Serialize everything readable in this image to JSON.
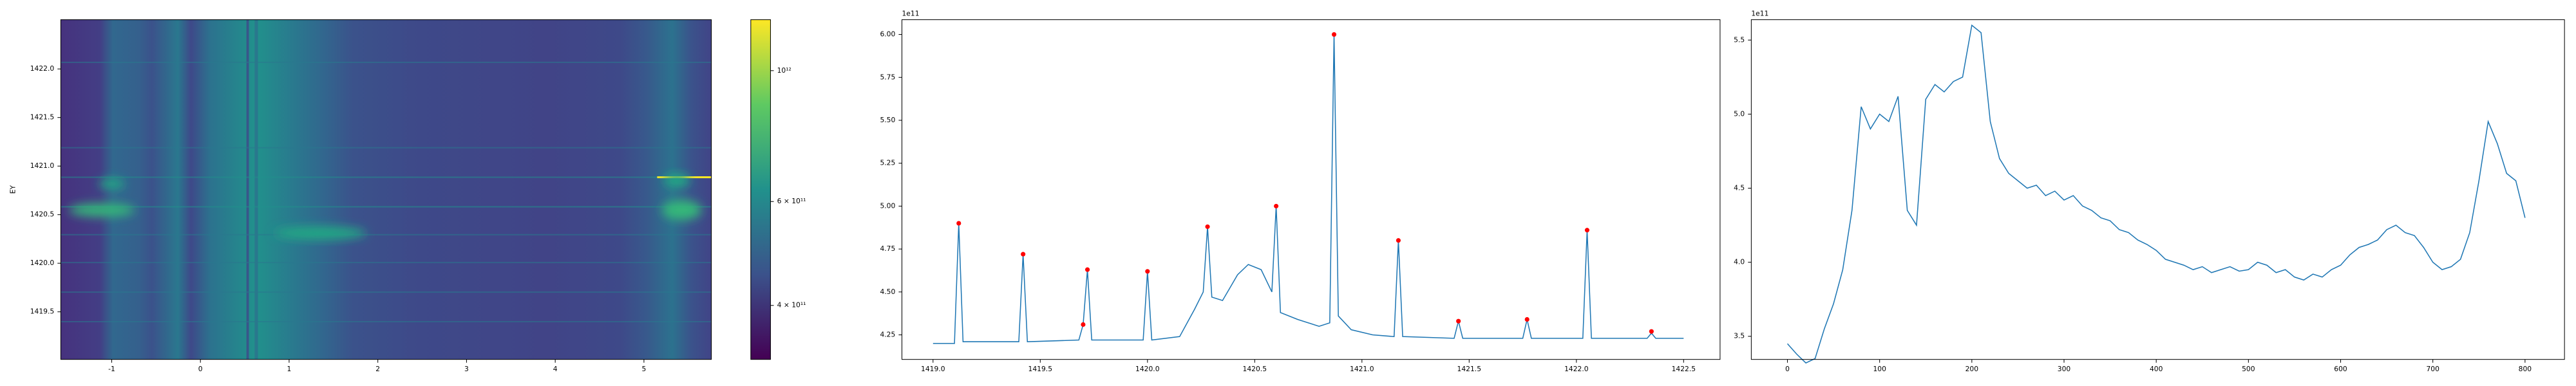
{
  "chart_data": [
    {
      "type": "heatmap",
      "ylabel": "EY",
      "xlim": [
        -1.574,
        5.76
      ],
      "ylim": [
        1419.01,
        1422.507
      ],
      "xticks": [
        -1,
        0,
        1,
        2,
        3,
        4,
        5
      ],
      "yticks": [
        1419.5,
        {
          "value": 1420.0,
          "label": "1420.0"
        },
        1420.5,
        {
          "value": 1421.0,
          "label": "1421.0"
        },
        1421.5,
        {
          "value": 1422.0,
          "label": "1422.0"
        }
      ],
      "colorbar": {
        "scale": "log",
        "clim": [
          324000000000,
          1220000000000
        ],
        "ticks": [
          {
            "value": 400000000000,
            "label": "4 × 10¹¹"
          },
          {
            "value": 600000000000,
            "label": "6 × 10¹¹"
          },
          {
            "value": 1000000000000,
            "label": "10¹²"
          }
        ]
      }
    },
    {
      "type": "line",
      "offset_label": "1e11",
      "xlim": [
        1418.855,
        1422.67
      ],
      "ylim": [
        4.107,
        6.086
      ],
      "xticks": [
        {
          "value": 1419.0,
          "label": "1419.0"
        },
        1419.5,
        {
          "value": 1420.0,
          "label": "1420.0"
        },
        1420.5,
        {
          "value": 1421.0,
          "label": "1421.0"
        },
        1421.5,
        {
          "value": 1422.0,
          "label": "1422.0"
        },
        1422.5
      ],
      "yticks": [
        4.25,
        {
          "value": 4.5,
          "label": "4.50"
        },
        4.75,
        {
          "value": 5.0,
          "label": "5.00"
        },
        5.25,
        {
          "value": 5.5,
          "label": "5.50"
        },
        5.75,
        {
          "value": 6.0,
          "label": "6.00"
        }
      ],
      "series": [
        {
          "color": "#1f77b4",
          "x": [
            1419.0,
            1419.1,
            1419.12,
            1419.14,
            1419.4,
            1419.42,
            1419.44,
            1419.68,
            1419.7,
            1419.72,
            1419.74,
            1419.98,
            1420.0,
            1420.02,
            1420.15,
            1420.22,
            1420.26,
            1420.28,
            1420.3,
            1420.35,
            1420.42,
            1420.47,
            1420.53,
            1420.58,
            1420.6,
            1420.62,
            1420.7,
            1420.8,
            1420.85,
            1420.87,
            1420.89,
            1420.95,
            1421.05,
            1421.15,
            1421.17,
            1421.19,
            1421.43,
            1421.45,
            1421.47,
            1421.75,
            1421.77,
            1421.79,
            1422.03,
            1422.05,
            1422.07,
            1422.33,
            1422.35,
            1422.37,
            1422.5
          ],
          "values": [
            4.2,
            4.2,
            4.9,
            4.21,
            4.21,
            4.72,
            4.21,
            4.22,
            4.31,
            4.63,
            4.22,
            4.22,
            4.62,
            4.22,
            4.24,
            4.4,
            4.5,
            4.88,
            4.47,
            4.45,
            4.6,
            4.66,
            4.63,
            4.5,
            5.0,
            4.38,
            4.34,
            4.3,
            4.32,
            6.0,
            4.36,
            4.28,
            4.25,
            4.24,
            4.8,
            4.24,
            4.23,
            4.33,
            4.23,
            4.23,
            4.34,
            4.23,
            4.23,
            4.86,
            4.23,
            4.23,
            4.26,
            4.23,
            4.23
          ]
        },
        {
          "color": "red",
          "marker": "o",
          "x": [
            1419.12,
            1419.42,
            1419.7,
            1419.72,
            1420.0,
            1420.28,
            1420.6,
            1420.87,
            1421.17,
            1421.45,
            1421.77,
            1422.05,
            1422.35
          ],
          "values": [
            4.9,
            4.72,
            4.31,
            4.63,
            4.62,
            4.88,
            5.0,
            6.0,
            4.8,
            4.33,
            4.34,
            4.86,
            4.27
          ]
        }
      ]
    },
    {
      "type": "line",
      "offset_label": "1e11",
      "xlim": [
        -39.2,
        842.8
      ],
      "ylim": [
        3.344,
        5.6375
      ],
      "xticks": [
        0,
        100,
        200,
        300,
        400,
        500,
        600,
        700,
        800
      ],
      "yticks": [
        3.5,
        {
          "value": 4.0,
          "label": "4.0"
        },
        4.5,
        {
          "value": 5.0,
          "label": "5.0"
        },
        5.5
      ],
      "series": [
        {
          "color": "#1f77b4",
          "x": [
            0,
            10,
            20,
            30,
            40,
            50,
            60,
            70,
            80,
            90,
            100,
            110,
            120,
            130,
            140,
            150,
            160,
            170,
            180,
            190,
            200,
            210,
            220,
            230,
            240,
            250,
            260,
            270,
            280,
            290,
            300,
            310,
            320,
            330,
            340,
            350,
            360,
            370,
            380,
            390,
            400,
            410,
            420,
            430,
            440,
            450,
            460,
            470,
            480,
            490,
            500,
            510,
            520,
            530,
            540,
            550,
            560,
            570,
            580,
            590,
            600,
            610,
            620,
            630,
            640,
            650,
            660,
            670,
            680,
            690,
            700,
            710,
            720,
            730,
            740,
            750,
            760,
            770,
            780,
            790,
            800
          ],
          "values": [
            3.45,
            3.38,
            3.32,
            3.35,
            3.55,
            3.72,
            3.95,
            4.35,
            5.05,
            4.9,
            5.0,
            4.95,
            5.12,
            4.35,
            4.25,
            5.1,
            5.2,
            5.15,
            5.22,
            5.25,
            5.6,
            5.55,
            4.95,
            4.7,
            4.6,
            4.55,
            4.5,
            4.52,
            4.45,
            4.48,
            4.42,
            4.45,
            4.38,
            4.35,
            4.3,
            4.28,
            4.22,
            4.2,
            4.15,
            4.12,
            4.08,
            4.02,
            4.0,
            3.98,
            3.95,
            3.97,
            3.93,
            3.95,
            3.97,
            3.94,
            3.95,
            4.0,
            3.98,
            3.93,
            3.95,
            3.9,
            3.88,
            3.92,
            3.9,
            3.95,
            3.98,
            4.05,
            4.1,
            4.12,
            4.15,
            4.22,
            4.25,
            4.2,
            4.18,
            4.1,
            4.0,
            3.95,
            3.97,
            4.02,
            4.2,
            4.55,
            4.95,
            4.8,
            4.6,
            4.55,
            4.3
          ]
        }
      ]
    }
  ]
}
